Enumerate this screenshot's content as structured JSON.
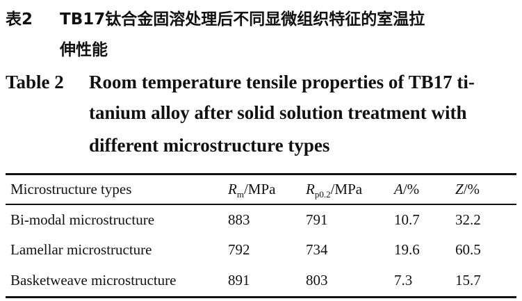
{
  "caption_cn": {
    "label": "表2",
    "line1": "TB17钛合金固溶处理后不同显微组织特征的室温拉",
    "line2": "伸性能"
  },
  "caption_en": {
    "label": "Table 2",
    "line1": "Room temperature tensile properties of TB17 ti-",
    "line2": "tanium alloy after solid solution treatment with",
    "line3": "different microstructure types"
  },
  "table": {
    "headers": [
      {
        "text": "Microstructure types"
      },
      {
        "sym": "R",
        "sub": "m",
        "unit": "/MPa"
      },
      {
        "sym": "R",
        "sub": "p0.2",
        "unit": "/MPa"
      },
      {
        "sym": "A",
        "unit": "/%"
      },
      {
        "sym": "Z",
        "unit": "/%"
      }
    ],
    "rows": [
      [
        "Bi-modal microstructure",
        "883",
        "791",
        "10.7",
        "32.2"
      ],
      [
        "Lamellar microstructure",
        "792",
        "734",
        "19.6",
        "60.5"
      ],
      [
        "Basketweave microstructure",
        "891",
        "803",
        "7.3",
        "15.7"
      ]
    ]
  }
}
